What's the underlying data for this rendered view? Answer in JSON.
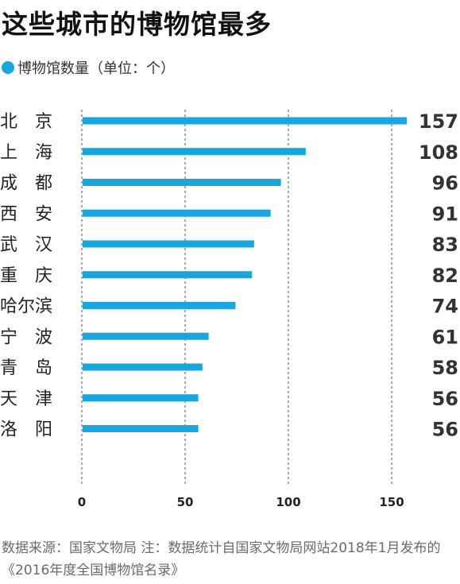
{
  "title": "这些城市的博物馆最多",
  "legend": {
    "label": "博物馆数量（单位：个）",
    "color": "#19a6de"
  },
  "footer": "数据来源：国家文物局  注：数据统计自国家文物局网站2018年1月发布的《2016年度全国博物馆名录》",
  "chart_data": {
    "type": "bar",
    "orientation": "horizontal",
    "categories": [
      "北京",
      "上海",
      "成都",
      "西安",
      "武汉",
      "重庆",
      "哈尔滨",
      "宁波",
      "青岛",
      "天津",
      "洛阳"
    ],
    "category_labels": [
      "北　京",
      "上　海",
      "成　都",
      "西　安",
      "武　汉",
      "重　庆",
      "哈尔滨",
      "宁　波",
      "青　岛",
      "天　津",
      "洛　阳"
    ],
    "series": [
      {
        "values": [
          157,
          108,
          96,
          91,
          83,
          82,
          74,
          61,
          58,
          56,
          56
        ]
      }
    ],
    "data_labels": [
      "157",
      "108",
      "96",
      "91",
      "83",
      "82",
      "74",
      "61",
      "58",
      "56",
      "56"
    ],
    "x_ticks": [
      "0",
      "50",
      "100",
      "150"
    ],
    "xlim": [
      0,
      150
    ],
    "grid": "vertical dashed",
    "bar_color": "#19a6de"
  }
}
